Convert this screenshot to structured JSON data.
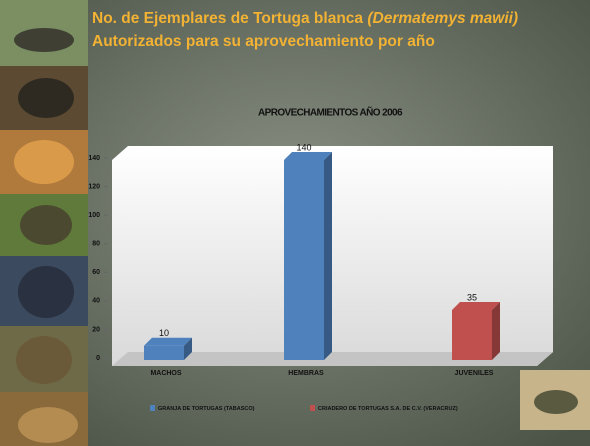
{
  "title": {
    "line1_main": "No. de Ejemplares de Tortuga blanca ",
    "line1_italic": "(Dermatemys mawii)",
    "line2": "Autorizados para su aprovechamiento por año"
  },
  "chart_data": {
    "type": "bar",
    "title": "APROVECHAMIENTOS AÑO 2006",
    "categories": [
      "MACHOS",
      "HEMBRAS",
      "JUVENILES"
    ],
    "series": [
      {
        "name": "GRANJA DE TORTUGAS (TABASCO)",
        "color": "#4f81bd",
        "values": [
          10,
          140,
          null
        ]
      },
      {
        "name": "CRIADERO DE TORTUGAS S.A. DE C.V. (VERACRUZ)",
        "color": "#c0504d",
        "values": [
          null,
          null,
          35
        ]
      }
    ],
    "ylim": [
      0,
      140
    ],
    "yticks": [
      0,
      20,
      40,
      60,
      80,
      100,
      120,
      140
    ],
    "grid": false,
    "legend": "bottom"
  }
}
